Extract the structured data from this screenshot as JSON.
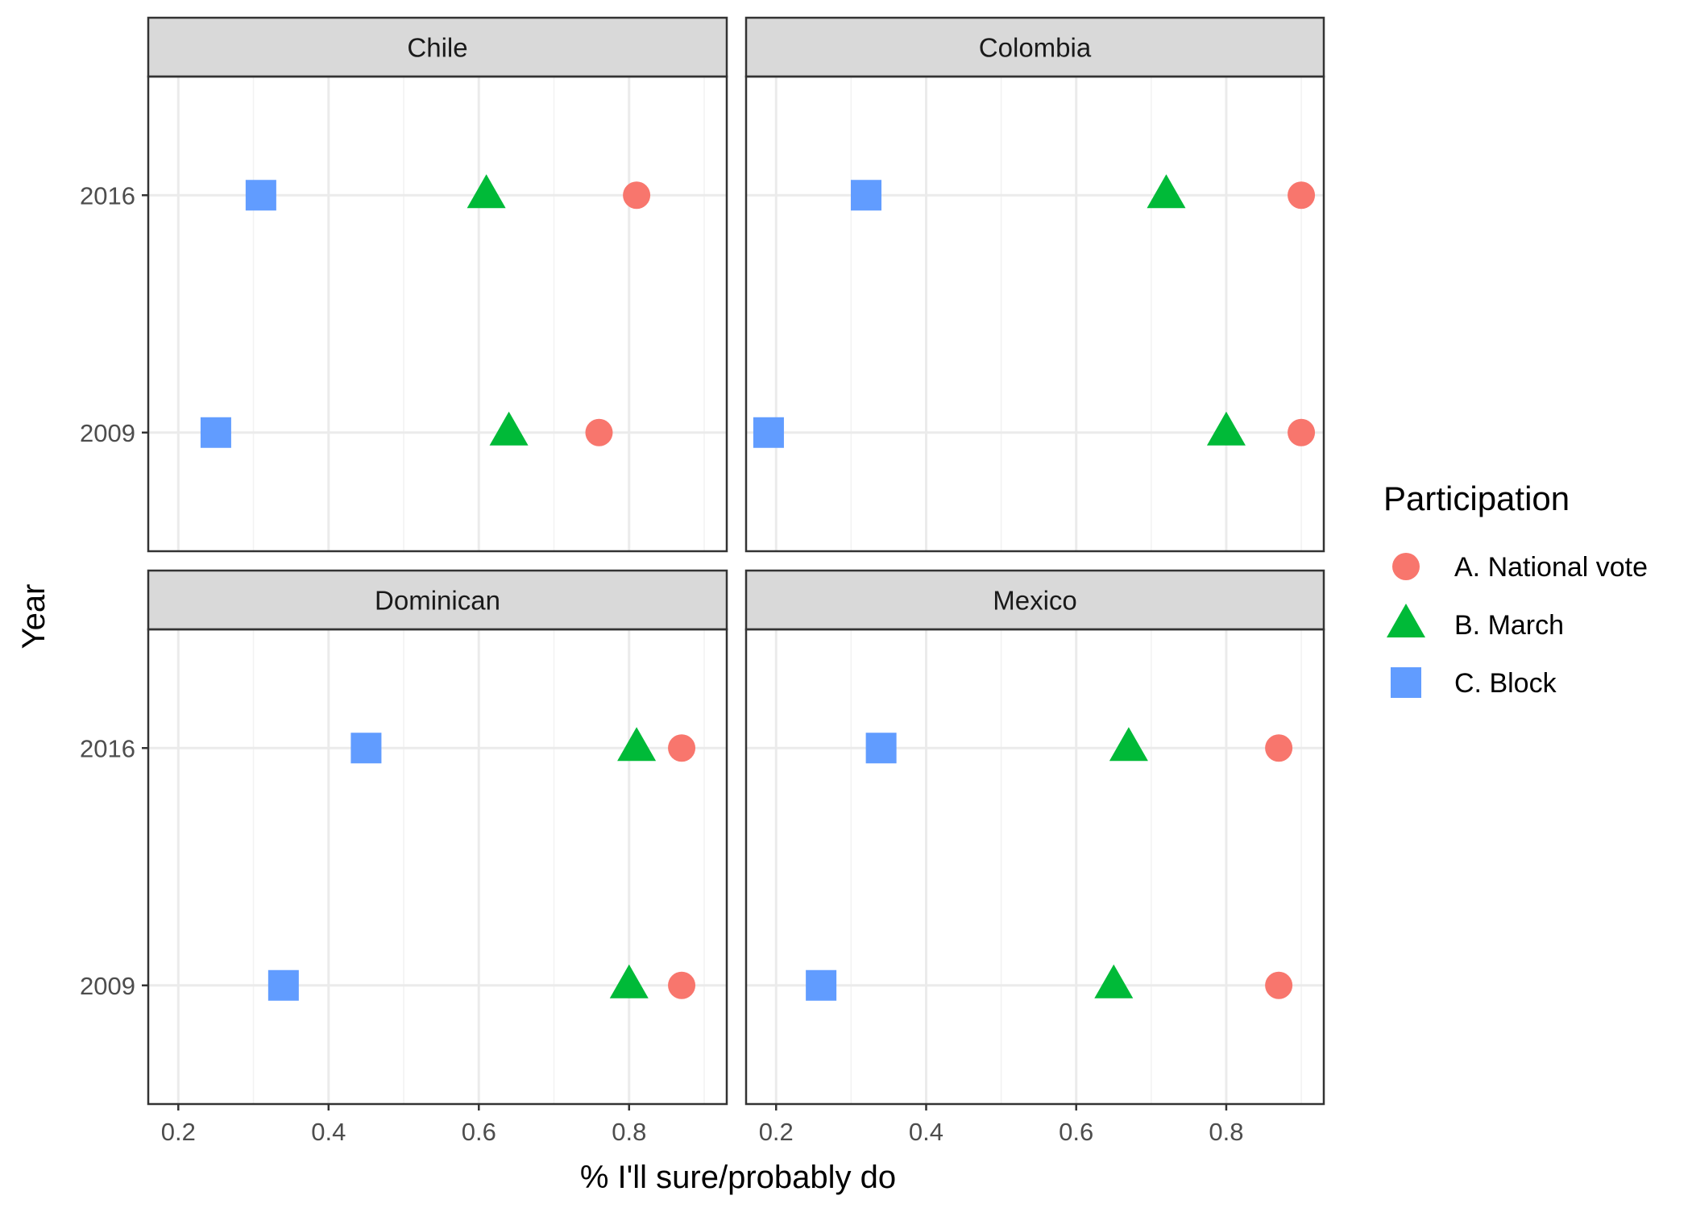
{
  "chart_data": {
    "type": "scatter",
    "xlabel": "% I'll sure/probably do",
    "ylabel": "Year",
    "xlim": [
      0.16,
      0.93
    ],
    "x_ticks": [
      0.2,
      0.4,
      0.6,
      0.8
    ],
    "x_tick_labels": [
      "0.2",
      "0.4",
      "0.6",
      "0.8"
    ],
    "y_categories": [
      "2016",
      "2009"
    ],
    "facet_layout": "2x2 grid",
    "grid": true,
    "legend": {
      "title": "Participation",
      "position": "right",
      "entries": [
        {
          "name": "A. National vote",
          "shape": "circle",
          "color": "#F8766D"
        },
        {
          "name": "B. March",
          "shape": "triangle",
          "color": "#00BA38"
        },
        {
          "name": "C. Block",
          "shape": "square",
          "color": "#619CFF"
        }
      ]
    },
    "facets": [
      {
        "name": "Chile",
        "points": [
          {
            "series": "A. National vote",
            "year": "2016",
            "x": 0.81
          },
          {
            "series": "B. March",
            "year": "2016",
            "x": 0.61
          },
          {
            "series": "C. Block",
            "year": "2016",
            "x": 0.31
          },
          {
            "series": "A. National vote",
            "year": "2009",
            "x": 0.76
          },
          {
            "series": "B. March",
            "year": "2009",
            "x": 0.64
          },
          {
            "series": "C. Block",
            "year": "2009",
            "x": 0.25
          }
        ]
      },
      {
        "name": "Colombia",
        "points": [
          {
            "series": "A. National vote",
            "year": "2016",
            "x": 0.9
          },
          {
            "series": "B. March",
            "year": "2016",
            "x": 0.72
          },
          {
            "series": "C. Block",
            "year": "2016",
            "x": 0.32
          },
          {
            "series": "A. National vote",
            "year": "2009",
            "x": 0.9
          },
          {
            "series": "B. March",
            "year": "2009",
            "x": 0.8
          },
          {
            "series": "C. Block",
            "year": "2009",
            "x": 0.19
          }
        ]
      },
      {
        "name": "Dominican",
        "points": [
          {
            "series": "A. National vote",
            "year": "2016",
            "x": 0.87
          },
          {
            "series": "B. March",
            "year": "2016",
            "x": 0.81
          },
          {
            "series": "C. Block",
            "year": "2016",
            "x": 0.45
          },
          {
            "series": "A. National vote",
            "year": "2009",
            "x": 0.87
          },
          {
            "series": "B. March",
            "year": "2009",
            "x": 0.8
          },
          {
            "series": "C. Block",
            "year": "2009",
            "x": 0.34
          }
        ]
      },
      {
        "name": "Mexico",
        "points": [
          {
            "series": "A. National vote",
            "year": "2016",
            "x": 0.87
          },
          {
            "series": "B. March",
            "year": "2016",
            "x": 0.67
          },
          {
            "series": "C. Block",
            "year": "2016",
            "x": 0.34
          },
          {
            "series": "A. National vote",
            "year": "2009",
            "x": 0.87
          },
          {
            "series": "B. March",
            "year": "2009",
            "x": 0.65
          },
          {
            "series": "C. Block",
            "year": "2009",
            "x": 0.26
          }
        ]
      }
    ]
  }
}
